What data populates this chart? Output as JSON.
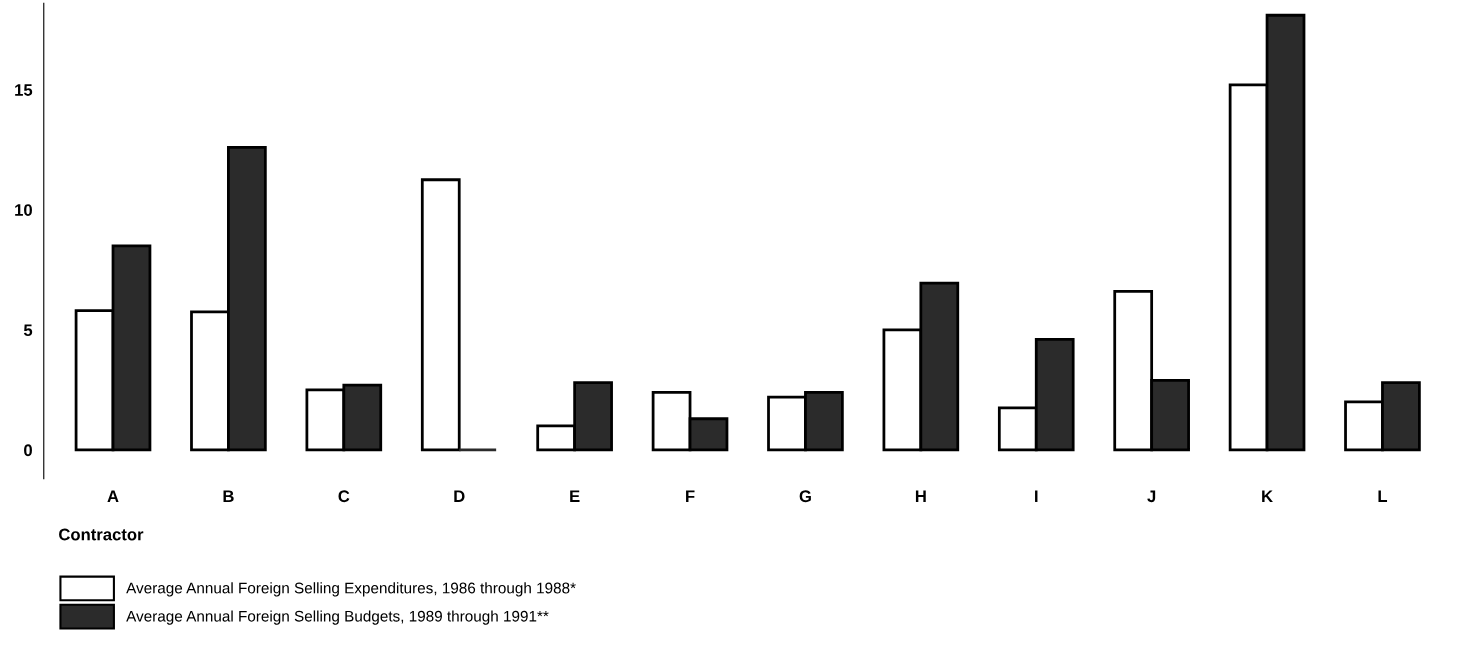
{
  "chart_data": {
    "type": "bar",
    "xlabel": "Contractor",
    "categories": [
      "A",
      "B",
      "C",
      "D",
      "E",
      "F",
      "G",
      "H",
      "I",
      "J",
      "K",
      "L"
    ],
    "series": [
      {
        "name": "Average Annual Foreign Selling Expenditures, 1986 through 1988*",
        "color": "#ffffff",
        "values": [
          5.8,
          5.75,
          2.5,
          11.25,
          1.0,
          2.4,
          2.2,
          5.0,
          1.75,
          6.6,
          15.2,
          2.0
        ]
      },
      {
        "name": "Average Annual Foreign Selling Budgets, 1989 through 1991**",
        "color": "#2b2b2b",
        "values": [
          8.5,
          12.6,
          2.7,
          0,
          2.8,
          1.3,
          2.4,
          6.95,
          4.6,
          2.9,
          18.1,
          2.8
        ]
      }
    ],
    "ylim": [
      -1.2,
      18.6
    ],
    "yticks": [
      0,
      5,
      10,
      15
    ],
    "grid": false,
    "legend": "bottom left"
  }
}
